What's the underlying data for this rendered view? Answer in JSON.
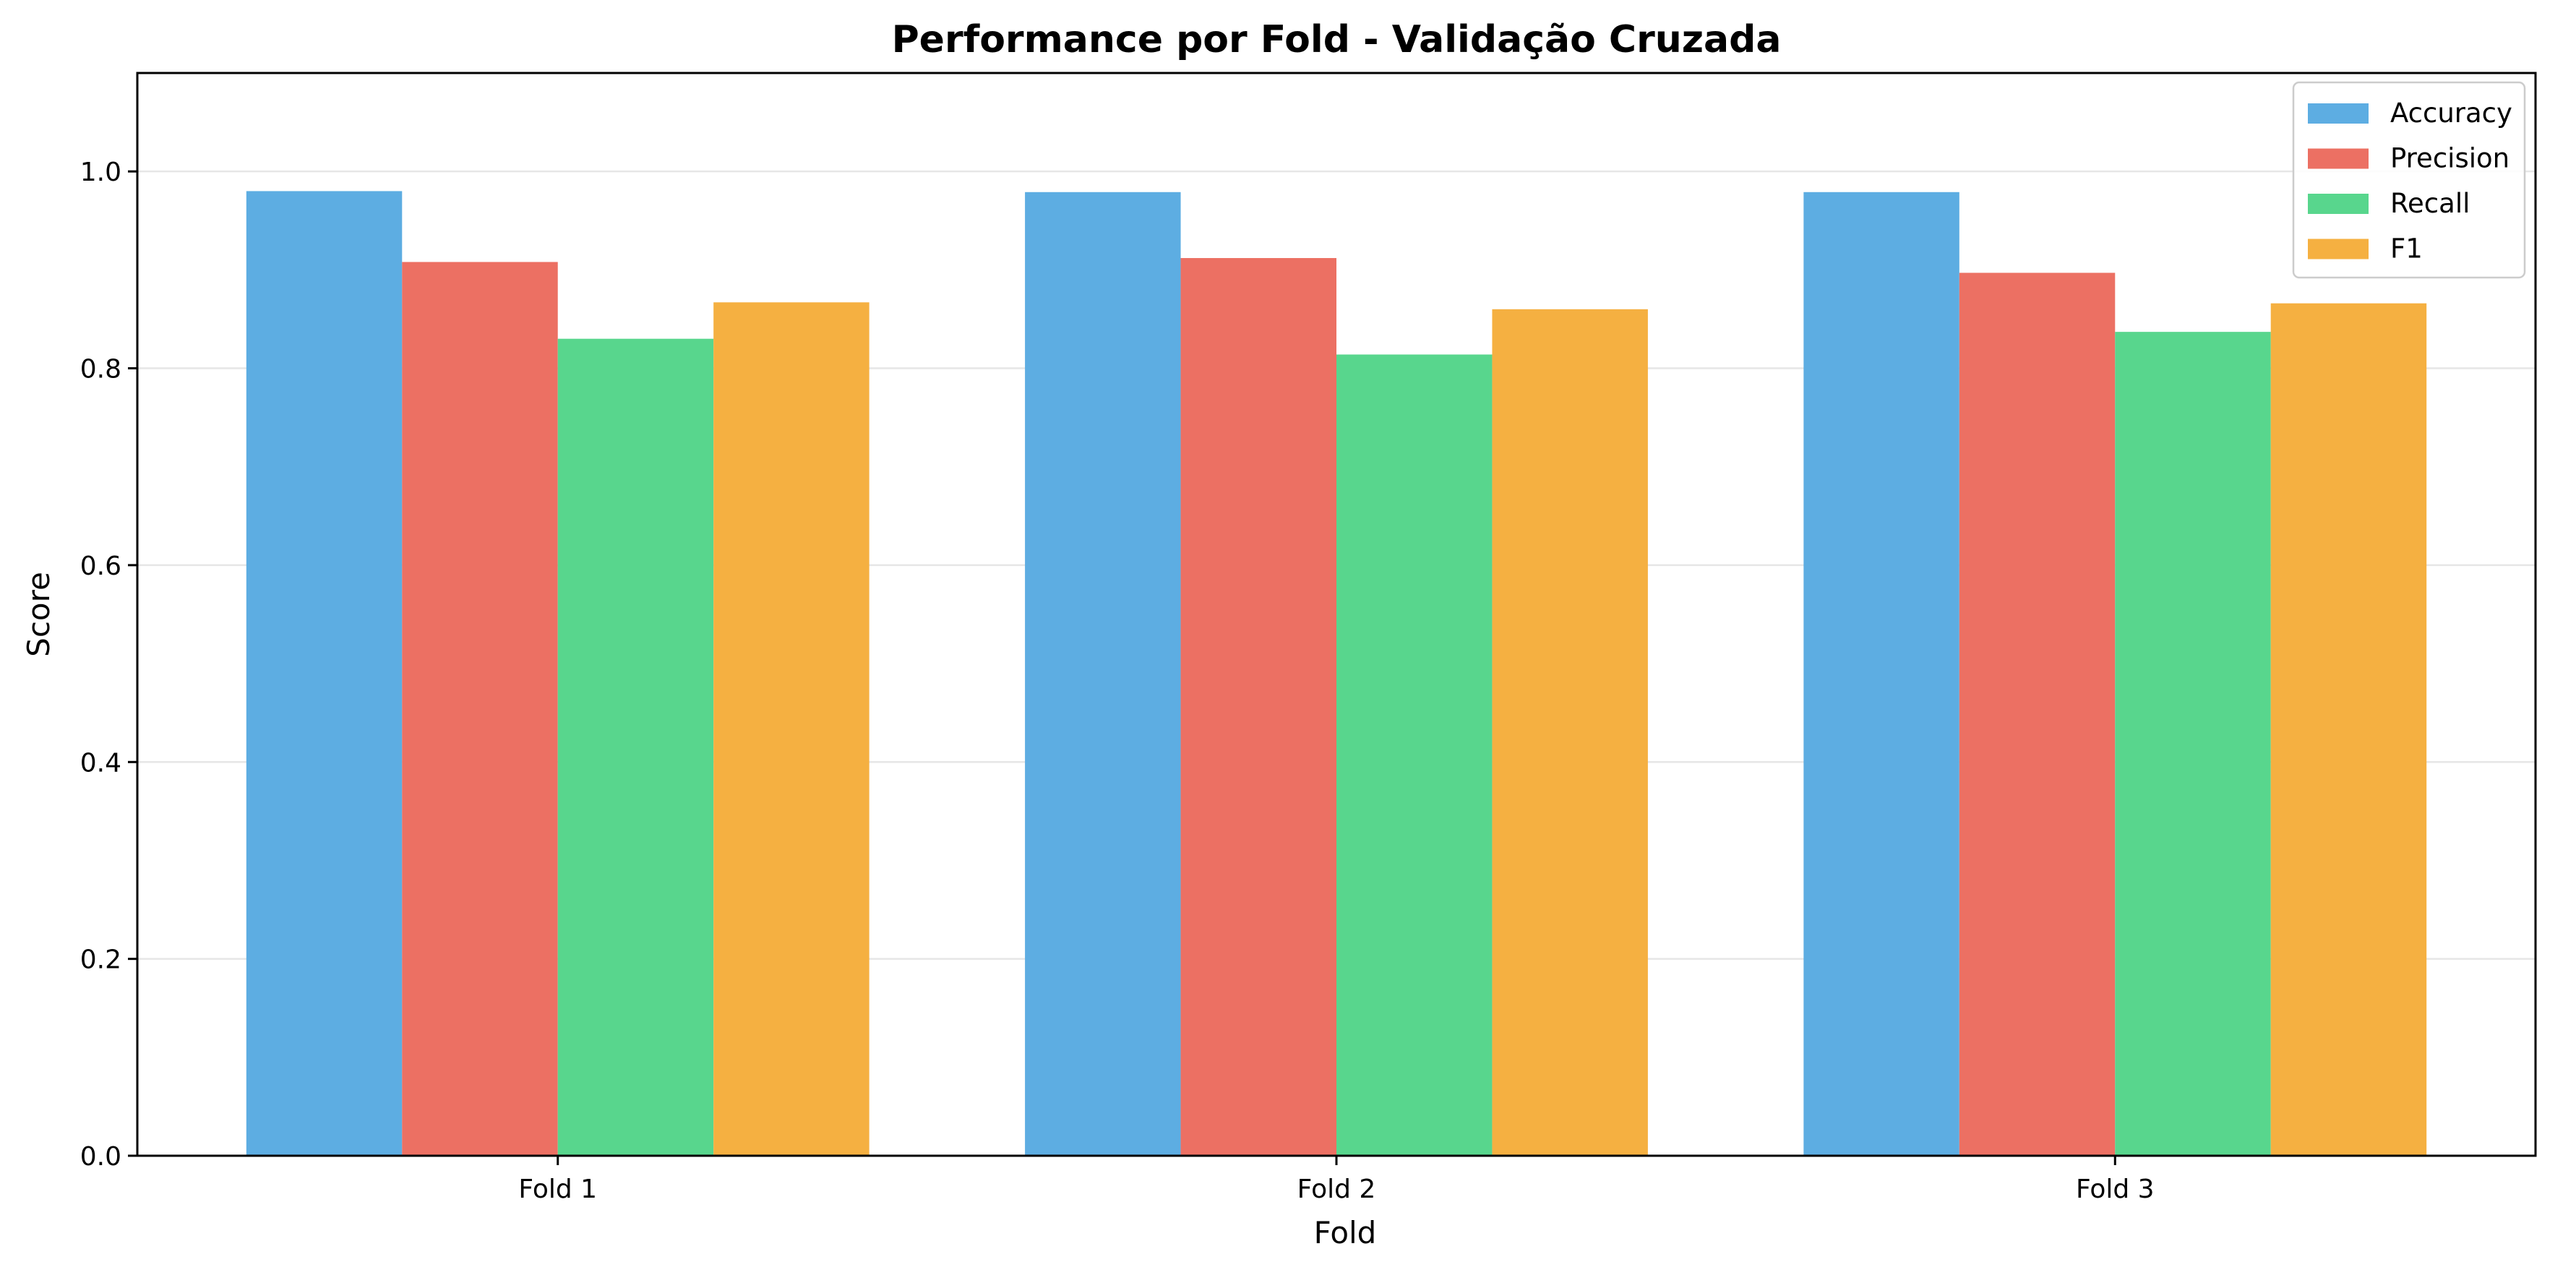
{
  "chart_data": {
    "type": "bar",
    "title": "Performance por Fold - Validação Cruzada",
    "xlabel": "Fold",
    "ylabel": "Score",
    "categories": [
      "Fold 1",
      "Fold 2",
      "Fold 3"
    ],
    "ylim": [
      0,
      1.1
    ],
    "yticks": [
      "0.0",
      "0.2",
      "0.4",
      "0.6",
      "0.8",
      "1.0"
    ],
    "grid": "horizontal",
    "legend_position": "top-right",
    "series": [
      {
        "name": "Accuracy",
        "color": "#5DADE2",
        "values": [
          0.98,
          0.979,
          0.979
        ]
      },
      {
        "name": "Precision",
        "color": "#EC7063",
        "values": [
          0.908,
          0.912,
          0.897
        ]
      },
      {
        "name": "Recall",
        "color": "#58D68D",
        "values": [
          0.83,
          0.814,
          0.837
        ]
      },
      {
        "name": "F1",
        "color": "#F5B041",
        "values": [
          0.867,
          0.86,
          0.866
        ]
      }
    ]
  }
}
